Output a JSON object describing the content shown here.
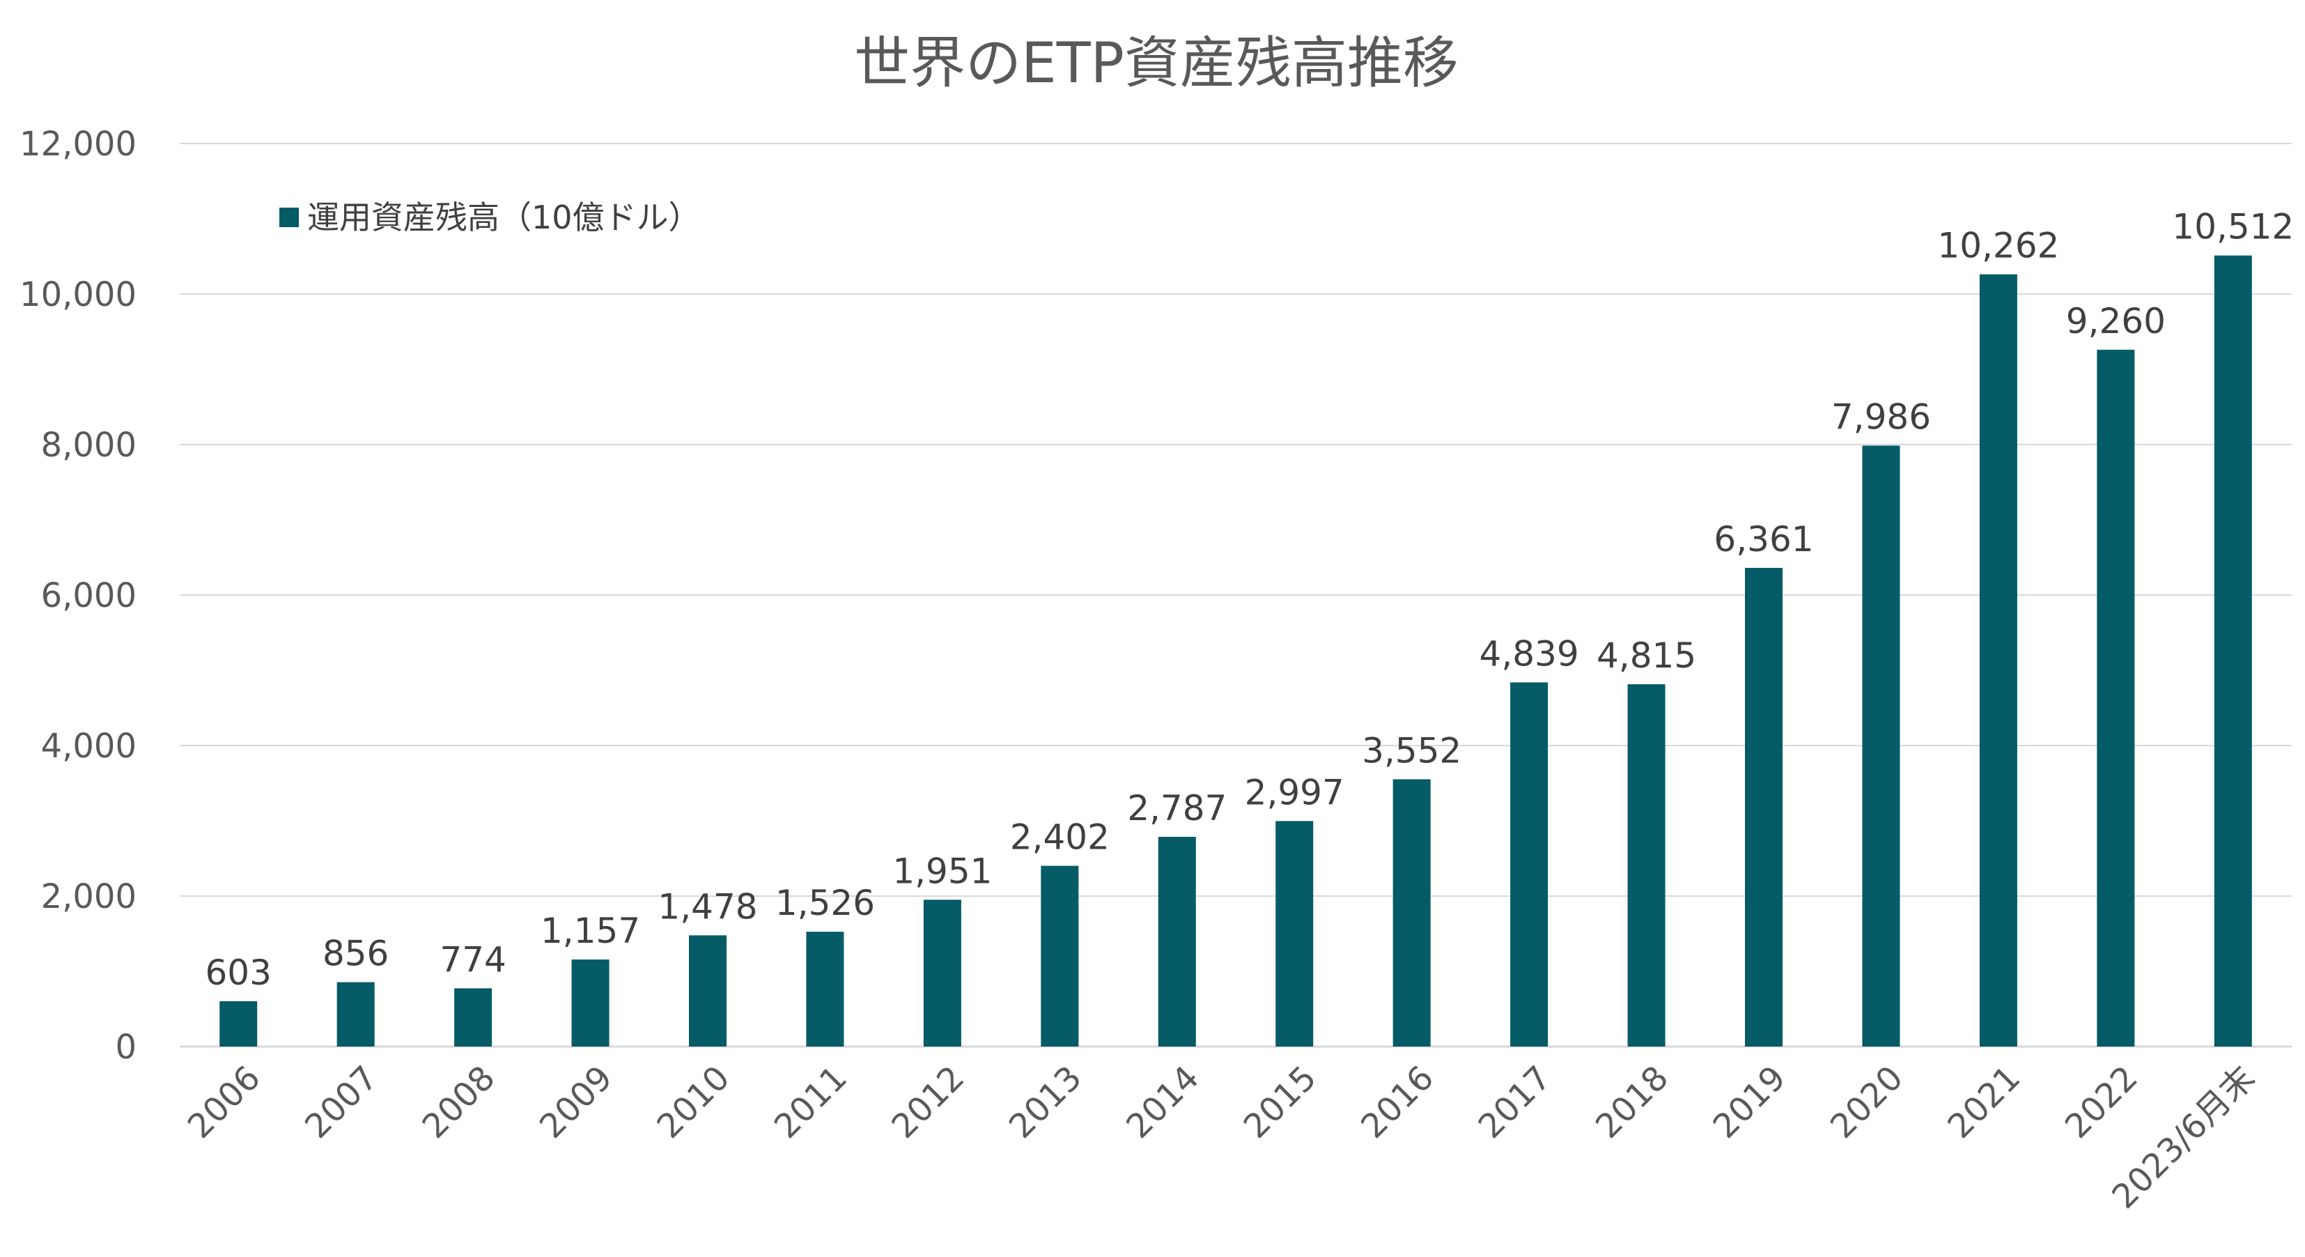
{
  "chart_data": {
    "type": "bar",
    "title": "世界のETP資産残高推移",
    "categories": [
      "2006",
      "2007",
      "2008",
      "2009",
      "2010",
      "2011",
      "2012",
      "2013",
      "2014",
      "2015",
      "2016",
      "2017",
      "2018",
      "2019",
      "2020",
      "2021",
      "2022",
      "2023/6月末"
    ],
    "series": [
      {
        "name": "運用資産残高（10億ドル）",
        "values": [
          603,
          856,
          774,
          1157,
          1478,
          1526,
          1951,
          2402,
          2787,
          2997,
          3552,
          4839,
          4815,
          6361,
          7986,
          10262,
          9260,
          10512
        ],
        "data_labels": [
          "603",
          "856",
          "774",
          "1,157",
          "1,478",
          "1,526",
          "1,951",
          "2,402",
          "2,787",
          "2,997",
          "3,552",
          "4,839",
          "4,815",
          "6,361",
          "7,986",
          "10,262",
          "9,260",
          "10,512"
        ],
        "color": "#055b66"
      }
    ],
    "y_ticks": [
      "0",
      "2,000",
      "4,000",
      "6,000",
      "8,000",
      "10,000",
      "12,000"
    ],
    "ylim": [
      0,
      12000
    ],
    "grid": true,
    "legend_position": "top-left",
    "colors": {
      "title": "#595959",
      "tick": "#595959",
      "data_label": "#404040",
      "grid": "#d9d9d9"
    }
  }
}
